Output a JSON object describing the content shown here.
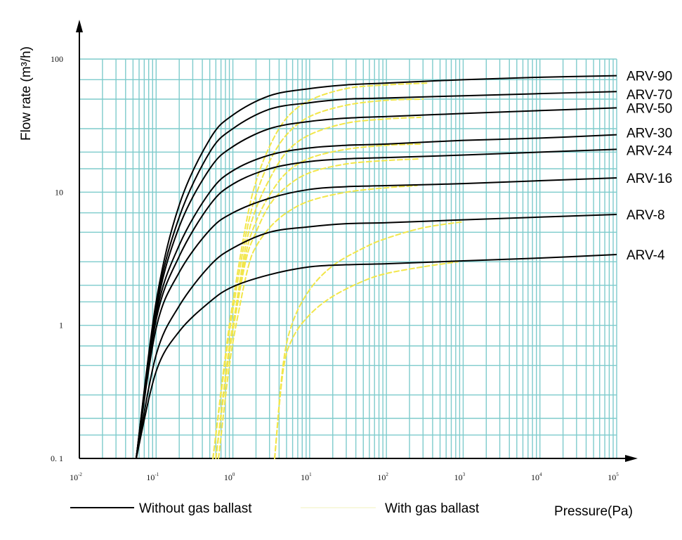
{
  "chart_data": {
    "type": "line",
    "xscale": "log",
    "yscale": "log",
    "xlim": [
      0.01,
      100000
    ],
    "ylim": [
      0.1,
      100
    ],
    "grid": true,
    "grid_color": "#7ecbcc",
    "ylabel": "Flow rate (m³/h)",
    "xlabel": "Pressure(Pa)",
    "x_ticks": [
      {
        "value": 0.01,
        "base": "10",
        "exp": "-2"
      },
      {
        "value": 0.1,
        "base": "10",
        "exp": "-1"
      },
      {
        "value": 1,
        "base": "10",
        "exp": "0"
      },
      {
        "value": 10,
        "base": "10",
        "exp": "1"
      },
      {
        "value": 100,
        "base": "10",
        "exp": "2"
      },
      {
        "value": 1000,
        "base": "10",
        "exp": "3"
      },
      {
        "value": 10000,
        "base": "10",
        "exp": "4"
      },
      {
        "value": 100000,
        "base": "10",
        "exp": "5"
      }
    ],
    "y_ticks": [
      {
        "value": 0.1,
        "label": "0. 1"
      },
      {
        "value": 1,
        "label": "1"
      },
      {
        "value": 10,
        "label": "10"
      },
      {
        "value": 100,
        "label": "100"
      }
    ],
    "legend": [
      {
        "label": "Without gas ballast",
        "color": "#000000"
      },
      {
        "label": "With gas ballast",
        "color": "#f2e64a"
      }
    ],
    "series": [
      {
        "name": "ARV-90",
        "color": "#000000",
        "points": [
          [
            0.055,
            0.1
          ],
          [
            0.1,
            1.5
          ],
          [
            0.2,
            8
          ],
          [
            0.5,
            25
          ],
          [
            1,
            38
          ],
          [
            3,
            53
          ],
          [
            10,
            60
          ],
          [
            30,
            64
          ],
          [
            100,
            66
          ],
          [
            1000,
            70
          ],
          [
            10000,
            73
          ],
          [
            100000,
            75
          ]
        ]
      },
      {
        "name": "ARV-70",
        "color": "#000000",
        "points": [
          [
            0.055,
            0.1
          ],
          [
            0.1,
            1.4
          ],
          [
            0.2,
            6.5
          ],
          [
            0.5,
            20
          ],
          [
            1,
            30
          ],
          [
            3,
            42
          ],
          [
            10,
            47
          ],
          [
            30,
            50
          ],
          [
            100,
            51
          ],
          [
            1000,
            53
          ],
          [
            10000,
            55
          ],
          [
            100000,
            57
          ]
        ]
      },
      {
        "name": "ARV-50",
        "color": "#000000",
        "points": [
          [
            0.055,
            0.1
          ],
          [
            0.1,
            1.3
          ],
          [
            0.2,
            5.5
          ],
          [
            0.5,
            15
          ],
          [
            1,
            22
          ],
          [
            3,
            30
          ],
          [
            10,
            34
          ],
          [
            30,
            36
          ],
          [
            100,
            37
          ],
          [
            1000,
            39
          ],
          [
            10000,
            41
          ],
          [
            100000,
            43
          ]
        ]
      },
      {
        "name": "ARV-30",
        "color": "#000000",
        "points": [
          [
            0.055,
            0.1
          ],
          [
            0.1,
            1.2
          ],
          [
            0.2,
            4
          ],
          [
            0.5,
            10
          ],
          [
            1,
            14.5
          ],
          [
            3,
            19
          ],
          [
            10,
            21.5
          ],
          [
            30,
            22.5
          ],
          [
            100,
            23
          ],
          [
            1000,
            24.5
          ],
          [
            10000,
            25.5
          ],
          [
            100000,
            27
          ]
        ]
      },
      {
        "name": "ARV-24",
        "color": "#000000",
        "points": [
          [
            0.055,
            0.1
          ],
          [
            0.1,
            1.1
          ],
          [
            0.2,
            3.3
          ],
          [
            0.5,
            8
          ],
          [
            1,
            11.5
          ],
          [
            3,
            15
          ],
          [
            10,
            17
          ],
          [
            30,
            17.8
          ],
          [
            100,
            18.2
          ],
          [
            1000,
            19
          ],
          [
            10000,
            20
          ],
          [
            100000,
            21
          ]
        ]
      },
      {
        "name": "ARV-16",
        "color": "#000000",
        "points": [
          [
            0.055,
            0.1
          ],
          [
            0.1,
            0.95
          ],
          [
            0.2,
            2.5
          ],
          [
            0.5,
            5.2
          ],
          [
            1,
            7
          ],
          [
            3,
            9
          ],
          [
            10,
            10.5
          ],
          [
            30,
            11
          ],
          [
            100,
            11.2
          ],
          [
            1000,
            11.6
          ],
          [
            10000,
            12.2
          ],
          [
            100000,
            12.8
          ]
        ]
      },
      {
        "name": "ARV-8",
        "color": "#000000",
        "points": [
          [
            0.055,
            0.1
          ],
          [
            0.1,
            0.6
          ],
          [
            0.2,
            1.4
          ],
          [
            0.5,
            2.8
          ],
          [
            1,
            3.8
          ],
          [
            3,
            5
          ],
          [
            10,
            5.5
          ],
          [
            30,
            5.8
          ],
          [
            100,
            5.9
          ],
          [
            1000,
            6.2
          ],
          [
            10000,
            6.5
          ],
          [
            100000,
            6.8
          ]
        ]
      },
      {
        "name": "ARV-4",
        "color": "#000000",
        "points": [
          [
            0.055,
            0.1
          ],
          [
            0.1,
            0.45
          ],
          [
            0.2,
            0.9
          ],
          [
            0.5,
            1.5
          ],
          [
            1,
            1.95
          ],
          [
            3,
            2.4
          ],
          [
            10,
            2.75
          ],
          [
            30,
            2.85
          ],
          [
            100,
            2.9
          ],
          [
            1000,
            3.05
          ],
          [
            10000,
            3.2
          ],
          [
            100000,
            3.4
          ]
        ]
      },
      {
        "name": "",
        "color": "#f2e64a",
        "dashed": true,
        "points": [
          [
            0.55,
            0.1
          ],
          [
            0.8,
            0.6
          ],
          [
            1,
            1.5
          ],
          [
            1.5,
            6
          ],
          [
            2,
            12
          ],
          [
            3,
            22
          ],
          [
            5,
            36
          ],
          [
            10,
            49
          ],
          [
            30,
            60
          ],
          [
            100,
            64
          ],
          [
            350,
            66
          ]
        ]
      },
      {
        "name": "",
        "color": "#f2e64a",
        "dashed": true,
        "points": [
          [
            0.55,
            0.1
          ],
          [
            0.8,
            0.55
          ],
          [
            1,
            1.3
          ],
          [
            1.5,
            5
          ],
          [
            2,
            9.5
          ],
          [
            3,
            17
          ],
          [
            5,
            27
          ],
          [
            10,
            37
          ],
          [
            30,
            45
          ],
          [
            100,
            49
          ],
          [
            300,
            50
          ]
        ]
      },
      {
        "name": "",
        "color": "#f2e64a",
        "dashed": true,
        "points": [
          [
            0.6,
            0.1
          ],
          [
            0.85,
            0.55
          ],
          [
            1.1,
            1.4
          ],
          [
            1.5,
            4.2
          ],
          [
            2,
            7.5
          ],
          [
            3,
            12.5
          ],
          [
            5,
            20
          ],
          [
            10,
            27
          ],
          [
            30,
            33
          ],
          [
            100,
            35.5
          ],
          [
            280,
            36.5
          ]
        ]
      },
      {
        "name": "",
        "color": "#f2e64a",
        "dashed": true,
        "points": [
          [
            0.6,
            0.1
          ],
          [
            0.85,
            0.5
          ],
          [
            1.1,
            1.3
          ],
          [
            1.5,
            3.6
          ],
          [
            2,
            6
          ],
          [
            3,
            9.5
          ],
          [
            5,
            14
          ],
          [
            10,
            18
          ],
          [
            30,
            21
          ],
          [
            100,
            22.5
          ],
          [
            280,
            23
          ]
        ]
      },
      {
        "name": "",
        "color": "#f2e64a",
        "dashed": true,
        "points": [
          [
            0.6,
            0.1
          ],
          [
            0.85,
            0.5
          ],
          [
            1.1,
            1.25
          ],
          [
            1.5,
            3.2
          ],
          [
            2,
            5
          ],
          [
            3,
            8
          ],
          [
            5,
            11
          ],
          [
            10,
            14
          ],
          [
            30,
            16.3
          ],
          [
            100,
            17.3
          ],
          [
            270,
            17.8
          ]
        ]
      },
      {
        "name": "",
        "color": "#f2e64a",
        "dashed": true,
        "points": [
          [
            0.65,
            0.1
          ],
          [
            0.9,
            0.5
          ],
          [
            1.2,
            1.3
          ],
          [
            1.6,
            2.8
          ],
          [
            2,
            3.9
          ],
          [
            3,
            5.4
          ],
          [
            5,
            7
          ],
          [
            10,
            8.6
          ],
          [
            30,
            10
          ],
          [
            100,
            10.8
          ],
          [
            250,
            11.2
          ]
        ]
      },
      {
        "name": "",
        "color": "#f2e64a",
        "dashed": true,
        "points": [
          [
            3.5,
            0.1
          ],
          [
            4.5,
            0.5
          ],
          [
            6,
            1.05
          ],
          [
            10,
            1.85
          ],
          [
            20,
            2.8
          ],
          [
            50,
            3.8
          ],
          [
            100,
            4.5
          ],
          [
            300,
            5.4
          ],
          [
            1000,
            6
          ]
        ]
      },
      {
        "name": "",
        "color": "#f2e64a",
        "dashed": true,
        "points": [
          [
            3.5,
            0.1
          ],
          [
            4.5,
            0.45
          ],
          [
            6,
            0.8
          ],
          [
            10,
            1.2
          ],
          [
            20,
            1.65
          ],
          [
            50,
            2.15
          ],
          [
            100,
            2.45
          ],
          [
            300,
            2.75
          ],
          [
            850,
            3
          ]
        ]
      }
    ]
  }
}
